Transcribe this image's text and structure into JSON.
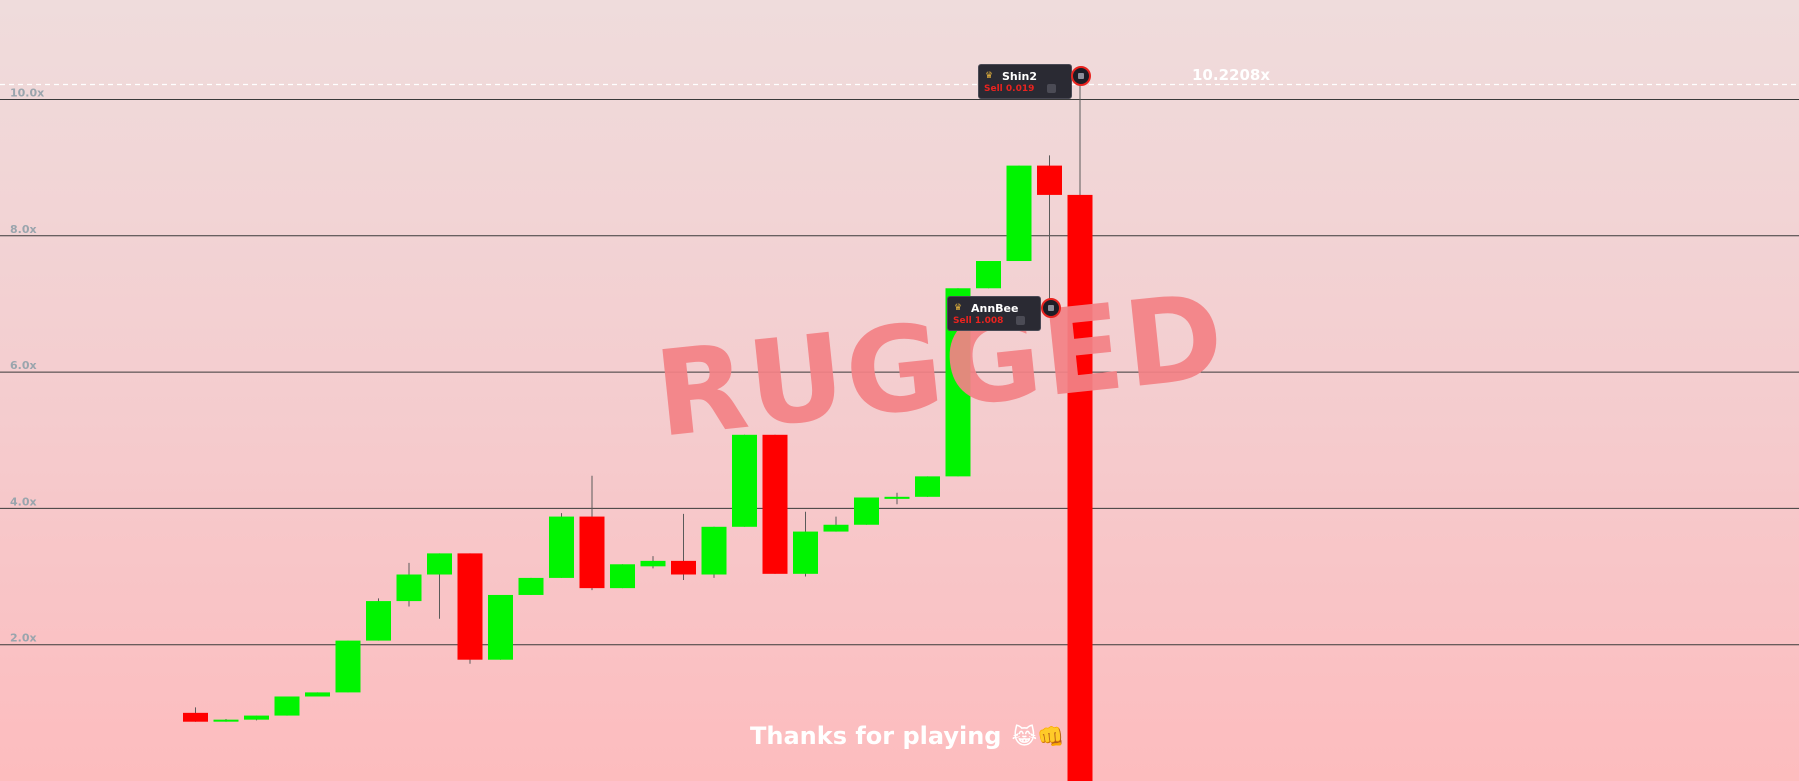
{
  "game": {
    "status_watermark": "RUGGED",
    "peak_multiplier": "10.2208x",
    "footer_message": "Thanks for playing",
    "footer_emoji": "😹👊"
  },
  "colors": {
    "up": "#00f400",
    "down": "#ff0000",
    "grid": "#3a3a3a",
    "axis_text": "#9aa5ad",
    "watermark": "#f38286"
  },
  "trades": [
    {
      "player": "Shin2",
      "action": "Sell 0.019",
      "icon": "crown-icon"
    },
    {
      "player": "AnnBee",
      "action": "Sell 1.008",
      "icon": "crown-icon"
    }
  ],
  "chart_data": {
    "type": "candlestick",
    "y_axis": {
      "ticks": [
        2,
        4,
        6,
        8,
        10
      ],
      "tick_labels": [
        "2.0x",
        "4.0x",
        "6.0x",
        "8.0x",
        "10.0x"
      ],
      "ylim": [
        0,
        11.3
      ]
    },
    "peak_line": 10.22,
    "candles": [
      {
        "o": 1.0,
        "h": 1.08,
        "l": 0.87,
        "c": 0.87
      },
      {
        "o": 0.89,
        "h": 0.91,
        "l": 0.87,
        "c": 0.9
      },
      {
        "o": 0.9,
        "h": 0.96,
        "l": 0.89,
        "c": 0.96
      },
      {
        "o": 0.96,
        "h": 1.24,
        "l": 0.96,
        "c": 1.24
      },
      {
        "o": 1.24,
        "h": 1.3,
        "l": 1.24,
        "c": 1.3
      },
      {
        "o": 1.3,
        "h": 2.06,
        "l": 1.3,
        "c": 2.06
      },
      {
        "o": 2.06,
        "h": 2.68,
        "l": 2.06,
        "c": 2.64
      },
      {
        "o": 2.64,
        "h": 3.2,
        "l": 2.56,
        "c": 3.03
      },
      {
        "o": 3.03,
        "h": 3.34,
        "l": 2.38,
        "c": 3.34
      },
      {
        "o": 3.34,
        "h": 3.34,
        "l": 1.72,
        "c": 1.78
      },
      {
        "o": 1.78,
        "h": 2.73,
        "l": 1.78,
        "c": 2.73
      },
      {
        "o": 2.73,
        "h": 2.98,
        "l": 2.73,
        "c": 2.98
      },
      {
        "o": 2.98,
        "h": 3.93,
        "l": 2.98,
        "c": 3.88
      },
      {
        "o": 3.88,
        "h": 4.48,
        "l": 2.8,
        "c": 2.83
      },
      {
        "o": 2.83,
        "h": 3.18,
        "l": 2.83,
        "c": 3.18
      },
      {
        "o": 3.15,
        "h": 3.3,
        "l": 3.12,
        "c": 3.23
      },
      {
        "o": 3.23,
        "h": 3.92,
        "l": 2.95,
        "c": 3.03
      },
      {
        "o": 3.03,
        "h": 3.73,
        "l": 2.98,
        "c": 3.73
      },
      {
        "o": 3.73,
        "h": 5.08,
        "l": 3.73,
        "c": 5.08
      },
      {
        "o": 5.08,
        "h": 5.08,
        "l": 3.04,
        "c": 3.04
      },
      {
        "o": 3.04,
        "h": 3.95,
        "l": 3.0,
        "c": 3.66
      },
      {
        "o": 3.66,
        "h": 3.88,
        "l": 3.66,
        "c": 3.76
      },
      {
        "o": 3.76,
        "h": 4.16,
        "l": 3.76,
        "c": 4.16
      },
      {
        "o": 4.14,
        "h": 4.23,
        "l": 4.06,
        "c": 4.17
      },
      {
        "o": 4.17,
        "h": 4.47,
        "l": 4.17,
        "c": 4.47
      },
      {
        "o": 4.47,
        "h": 7.23,
        "l": 4.47,
        "c": 7.23
      },
      {
        "o": 7.23,
        "h": 7.63,
        "l": 7.23,
        "c": 7.63
      },
      {
        "o": 7.63,
        "h": 9.03,
        "l": 7.63,
        "c": 9.03
      },
      {
        "o": 9.03,
        "h": 9.18,
        "l": 6.88,
        "c": 8.6
      },
      {
        "o": 8.6,
        "h": 10.22,
        "l": 0.0,
        "c": 0.0
      }
    ]
  }
}
